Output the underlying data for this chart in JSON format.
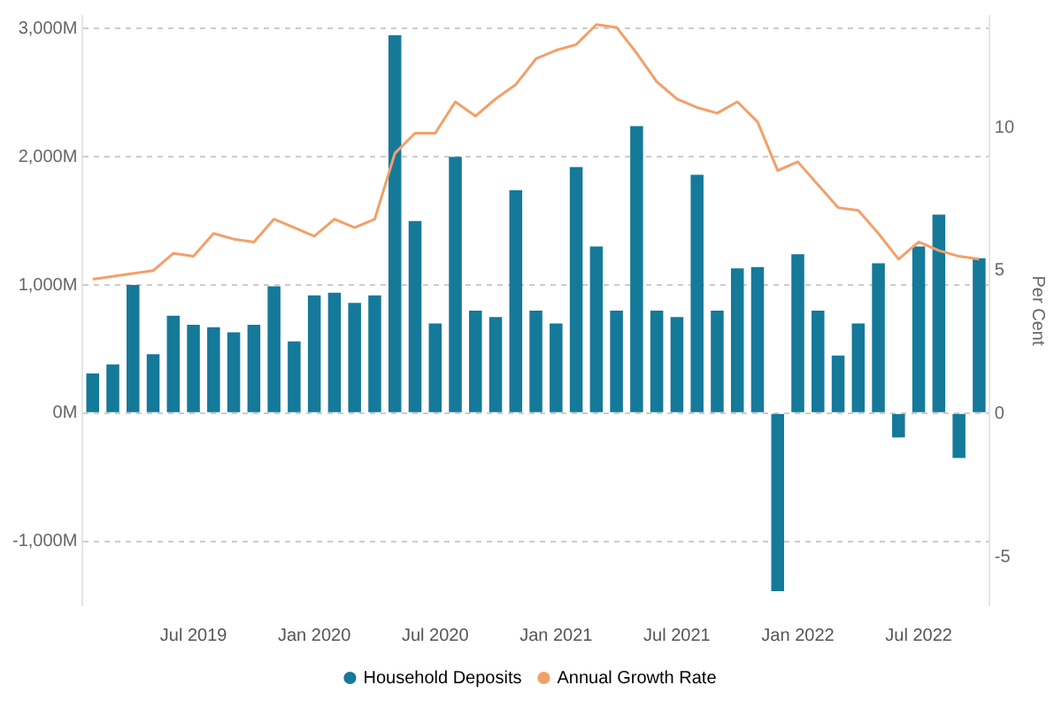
{
  "chart_data": {
    "type": "bar",
    "y2label": "Per Cent",
    "categories": [
      null,
      null,
      null,
      null,
      null,
      "Jul 2019",
      null,
      null,
      null,
      null,
      null,
      "Jan 2020",
      null,
      null,
      null,
      null,
      null,
      "Jul 2020",
      null,
      null,
      null,
      null,
      null,
      "Jan 2021",
      null,
      null,
      null,
      null,
      null,
      "Jul 2021",
      null,
      null,
      null,
      null,
      null,
      "Jan 2022",
      null,
      null,
      null,
      null,
      null,
      "Jul 2022",
      null,
      null,
      null
    ],
    "series": [
      {
        "name": "Household Deposits",
        "color": "#15799a",
        "values": [
          310,
          380,
          1000,
          460,
          760,
          690,
          670,
          630,
          690,
          990,
          560,
          920,
          940,
          860,
          920,
          2950,
          1500,
          700,
          2000,
          800,
          750,
          1740,
          800,
          700,
          1920,
          1300,
          800,
          2240,
          800,
          750,
          1860,
          800,
          1130,
          1140,
          -1390,
          1240,
          800,
          450,
          700,
          1170,
          -190,
          1300,
          1550,
          -350,
          1210
        ]
      },
      {
        "name": "Annual Growth Rate",
        "type": "line",
        "axis": "y2",
        "color": "#f2a06a",
        "values": [
          4.7,
          4.8,
          4.9,
          5.0,
          5.6,
          5.5,
          6.3,
          6.1,
          6.0,
          6.8,
          6.5,
          6.2,
          6.8,
          6.5,
          6.8,
          9.1,
          9.8,
          9.8,
          10.9,
          10.4,
          11.0,
          11.5,
          12.4,
          12.7,
          12.9,
          13.6,
          13.5,
          12.6,
          11.6,
          11.0,
          10.7,
          10.5,
          10.9,
          10.2,
          8.5,
          8.8,
          8.0,
          7.2,
          7.1,
          6.3,
          5.4,
          6.0,
          5.7,
          5.5,
          5.4
        ]
      }
    ],
    "ylim": [
      -1500,
      3100
    ],
    "yticks": [
      {
        "value": -1000,
        "label": "-1,000M"
      },
      {
        "value": 0,
        "label": "0M"
      },
      {
        "value": 1000,
        "label": "1,000M"
      },
      {
        "value": 2000,
        "label": "2,000M"
      },
      {
        "value": 3000,
        "label": "3,000M"
      }
    ],
    "y2lim": [
      -6.7,
      13.9
    ],
    "y2ticks": [
      -5,
      0,
      5,
      10
    ],
    "grid": "y",
    "legend": "bottom",
    "marker": "none"
  }
}
